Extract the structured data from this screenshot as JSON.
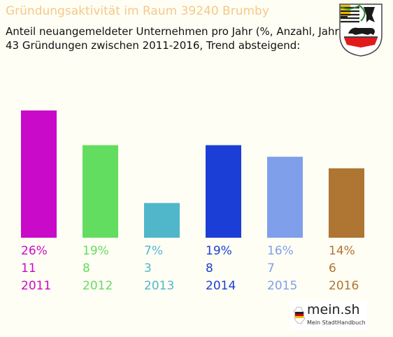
{
  "header": {
    "title": "Gründungsaktivität im Raum 39240 Brumby",
    "subtitle_line1": "Anteil neuangemeldeter Unternehmen pro Jahr (%, Anzahl, Jahr)",
    "subtitle_line2": "43 Gründungen zwischen 2011-2016, Trend absteigend:"
  },
  "crest": {
    "icon": "saxony-anhalt-coat-of-arms-icon"
  },
  "logo": {
    "name": "mein.sh",
    "tagline": "Mein StadtHandbuch",
    "icon": "germany-map-icon"
  },
  "chart_data": {
    "type": "bar",
    "categories": [
      "2011",
      "2012",
      "2013",
      "2014",
      "2015",
      "2016"
    ],
    "values": [
      11,
      8,
      3,
      8,
      7,
      6
    ],
    "percent_labels": [
      "26%",
      "19%",
      "7%",
      "19%",
      "16%",
      "14%"
    ],
    "colors": [
      "#c90ac9",
      "#63dd5f",
      "#4fb7c9",
      "#1b3fd6",
      "#7f9feb",
      "#ae7533"
    ],
    "ylim": [
      0,
      11
    ],
    "grid": false,
    "legend": "none"
  }
}
